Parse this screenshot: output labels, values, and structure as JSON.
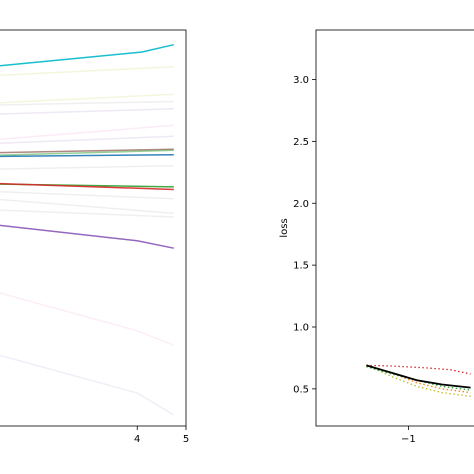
{
  "chart_data": [
    {
      "type": "line",
      "xlim": [
        0.98,
        5.0
      ],
      "ylim": [
        0.02,
        1.1
      ],
      "xticks": [
        4,
        5
      ],
      "yticks": [],
      "grid": false,
      "xlabel": "",
      "ylabel": "",
      "series": [
        {
          "color": "#17becf",
          "alpha": 1.0,
          "x": [
            0.98,
            4.1,
            4.75
          ],
          "y": [
            1.0,
            1.04,
            1.06
          ]
        },
        {
          "color": "#bcbd22",
          "alpha": 0.15,
          "x": [
            0.98,
            4.75
          ],
          "y": [
            0.975,
            1.0
          ]
        },
        {
          "color": "#bcbd22",
          "alpha": 0.15,
          "x": [
            0.98,
            4.75
          ],
          "y": [
            0.9,
            0.925
          ]
        },
        {
          "color": "#7f7f7f",
          "alpha": 0.12,
          "x": [
            0.98,
            4.75
          ],
          "y": [
            0.895,
            0.905
          ]
        },
        {
          "color": "#9467bd",
          "alpha": 0.15,
          "x": [
            0.98,
            4.75
          ],
          "y": [
            0.87,
            0.885
          ]
        },
        {
          "color": "#e377c2",
          "alpha": 0.15,
          "x": [
            0.98,
            4.75
          ],
          "y": [
            0.8,
            0.84
          ]
        },
        {
          "color": "#9467bd",
          "alpha": 0.15,
          "x": [
            0.98,
            4.75
          ],
          "y": [
            0.79,
            0.81
          ]
        },
        {
          "color": "#8c564b",
          "alpha": 0.7,
          "x": [
            0.98,
            4.75
          ],
          "y": [
            0.765,
            0.775
          ]
        },
        {
          "color": "#2ca02c",
          "alpha": 0.5,
          "x": [
            0.98,
            4.75
          ],
          "y": [
            0.758,
            0.772
          ]
        },
        {
          "color": "#1f77b4",
          "alpha": 0.9,
          "x": [
            0.98,
            4.75
          ],
          "y": [
            0.755,
            0.76
          ]
        },
        {
          "color": "#7f7f7f",
          "alpha": 0.12,
          "x": [
            0.98,
            4.75
          ],
          "y": [
            0.72,
            0.73
          ]
        },
        {
          "color": "#2ca02c",
          "alpha": 0.9,
          "x": [
            0.98,
            4.75
          ],
          "y": [
            0.68,
            0.672
          ]
        },
        {
          "color": "#d62728",
          "alpha": 0.9,
          "x": [
            0.98,
            4.75
          ],
          "y": [
            0.682,
            0.665
          ]
        },
        {
          "color": "#7f7f7f",
          "alpha": 0.12,
          "x": [
            0.98,
            4.75
          ],
          "y": [
            0.66,
            0.64
          ]
        },
        {
          "color": "#7f7f7f",
          "alpha": 0.12,
          "x": [
            0.98,
            4.75
          ],
          "y": [
            0.64,
            0.6
          ]
        },
        {
          "color": "#7f7f7f",
          "alpha": 0.12,
          "x": [
            0.98,
            4.75
          ],
          "y": [
            0.61,
            0.59
          ]
        },
        {
          "color": "#9467bd",
          "alpha": 1.0,
          "x": [
            0.98,
            4.0,
            4.75
          ],
          "y": [
            0.57,
            0.525,
            0.505
          ]
        },
        {
          "color": "#e377c2",
          "alpha": 0.12,
          "x": [
            0.98,
            4.0,
            4.75
          ],
          "y": [
            0.39,
            0.28,
            0.24
          ]
        },
        {
          "color": "#9467bd",
          "alpha": 0.12,
          "x": [
            0.98,
            4.0,
            4.75
          ],
          "y": [
            0.22,
            0.11,
            0.05
          ]
        }
      ]
    },
    {
      "type": "line",
      "xlim": [
        -1.55,
        -0.55
      ],
      "ylim": [
        0.2,
        3.4
      ],
      "xticks": [
        -1
      ],
      "xtick_labels": [
        "−1"
      ],
      "yticks": [
        0.5,
        1.0,
        1.5,
        2.0,
        2.5,
        3.0
      ],
      "ytick_labels": [
        "0.5",
        "1.0",
        "1.5",
        "2.0",
        "2.5",
        "3.0"
      ],
      "grid": false,
      "xlabel": "",
      "ylabel": "loss",
      "series": [
        {
          "color": "#d62728",
          "style": "dotted",
          "x": [
            -1.25,
            -1.1,
            -0.9,
            -0.75,
            -0.63
          ],
          "y": [
            0.69,
            0.685,
            0.67,
            0.655,
            0.62
          ]
        },
        {
          "color": "#bcbd22",
          "style": "dotted",
          "x": [
            -1.25,
            -1.1,
            -0.95,
            -0.8,
            -0.63
          ],
          "y": [
            0.69,
            0.6,
            0.52,
            0.47,
            0.44
          ]
        },
        {
          "color": "#ff7f0e",
          "style": "dotted",
          "x": [
            -1.25,
            -1.1,
            -0.95,
            -0.8,
            -0.63
          ],
          "y": [
            0.69,
            0.63,
            0.55,
            0.5,
            0.47
          ]
        },
        {
          "color": "#2ca02c",
          "style": "dotted",
          "x": [
            -1.25,
            -1.1,
            -0.95,
            -0.8,
            -0.63
          ],
          "y": [
            0.68,
            0.62,
            0.57,
            0.52,
            0.49
          ]
        },
        {
          "color": "#000000",
          "style": "solid",
          "x": [
            -1.25,
            -1.1,
            -0.95,
            -0.8,
            -0.63
          ],
          "y": [
            0.69,
            0.63,
            0.57,
            0.535,
            0.51
          ]
        }
      ]
    }
  ]
}
